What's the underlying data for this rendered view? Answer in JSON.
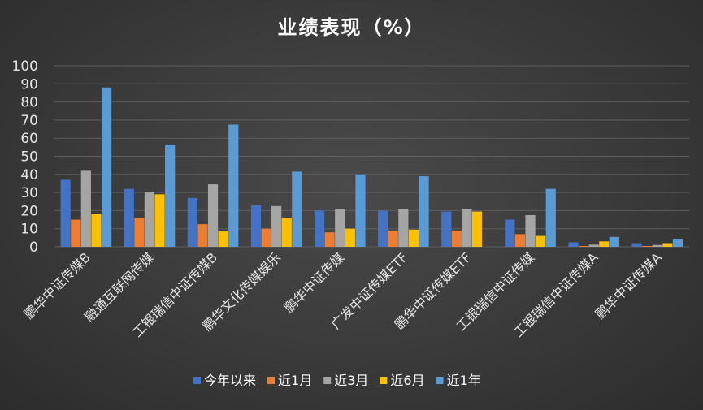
{
  "chart_data": {
    "type": "bar",
    "title": "业绩表现（%）",
    "xlabel": "",
    "ylabel": "",
    "ylim": [
      0,
      100
    ],
    "yticks": [
      0,
      10,
      20,
      30,
      40,
      50,
      60,
      70,
      80,
      90,
      100
    ],
    "grid": true,
    "legend_position": "bottom",
    "categories": [
      "鹏华中证传媒B",
      "融通互联网传媒",
      "工银瑞信中证传媒B",
      "鹏华文化传媒娱乐",
      "鹏华中证传媒",
      "广发中证传媒ETF",
      "鹏华中证传媒ETF",
      "工银瑞信中证传媒",
      "工银瑞信中证传媒A",
      "鹏华中证传媒A"
    ],
    "series": [
      {
        "name": "今年以来",
        "color": "#4472c4",
        "values": [
          37,
          32,
          27,
          23,
          20,
          20,
          19.5,
          15,
          2.5,
          2
        ]
      },
      {
        "name": "近1月",
        "color": "#ed7d31",
        "values": [
          15,
          16,
          12.5,
          10,
          8,
          9,
          9,
          7,
          0.3,
          0.3
        ]
      },
      {
        "name": "近3月",
        "color": "#a5a5a5",
        "values": [
          42,
          30.5,
          34.5,
          22.5,
          21,
          21,
          21,
          17.5,
          1.2,
          1
        ]
      },
      {
        "name": "近6月",
        "color": "#ffc000",
        "values": [
          18,
          29,
          8.5,
          16,
          10,
          9.5,
          19.5,
          6,
          3,
          2
        ]
      },
      {
        "name": "近1年",
        "color": "#5b9bd5",
        "values": [
          88,
          56.5,
          67.5,
          41.5,
          40,
          39,
          0,
          32,
          5.5,
          4.5
        ]
      }
    ]
  }
}
